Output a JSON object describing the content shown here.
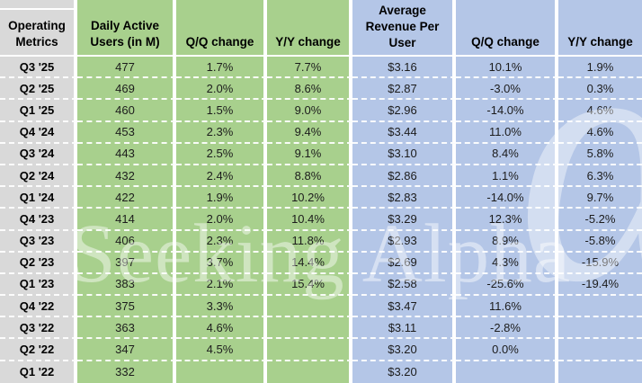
{
  "colors": {
    "green_fill": "#a8d08d",
    "blue_fill": "#b4c6e7",
    "gray_fill": "#d9d9d9",
    "grid_line": "#ffffff",
    "text": "#1c1c1c"
  },
  "watermark": {
    "text": "Seeking Alpha",
    "alpha_glyph": "α"
  },
  "table": {
    "headers": [
      "Operating Metrics",
      "Daily Active Users (in M)",
      "Q/Q change",
      "Y/Y change",
      "Average Revenue Per User",
      "Q/Q change",
      "Y/Y change"
    ],
    "rows": [
      [
        "Q3 '25",
        "477",
        "1.7%",
        "7.7%",
        "$3.16",
        "10.1%",
        "1.9%"
      ],
      [
        "Q2 '25",
        "469",
        "2.0%",
        "8.6%",
        "$2.87",
        "-3.0%",
        "0.3%"
      ],
      [
        "Q1 '25",
        "460",
        "1.5%",
        "9.0%",
        "$2.96",
        "-14.0%",
        "4.6%"
      ],
      [
        "Q4 '24",
        "453",
        "2.3%",
        "9.4%",
        "$3.44",
        "11.0%",
        "4.6%"
      ],
      [
        "Q3 '24",
        "443",
        "2.5%",
        "9.1%",
        "$3.10",
        "8.4%",
        "5.8%"
      ],
      [
        "Q2 '24",
        "432",
        "2.4%",
        "8.8%",
        "$2.86",
        "1.1%",
        "6.3%"
      ],
      [
        "Q1 '24",
        "422",
        "1.9%",
        "10.2%",
        "$2.83",
        "-14.0%",
        "9.7%"
      ],
      [
        "Q4 '23",
        "414",
        "2.0%",
        "10.4%",
        "$3.29",
        "12.3%",
        "-5.2%"
      ],
      [
        "Q3 '23",
        "406",
        "2.3%",
        "11.8%",
        "$2.93",
        "8.9%",
        "-5.8%"
      ],
      [
        "Q2 '23",
        "397",
        "3.7%",
        "14.4%",
        "$2.69",
        "4.3%",
        "-15.9%"
      ],
      [
        "Q1 '23",
        "383",
        "2.1%",
        "15.4%",
        "$2.58",
        "-25.6%",
        "-19.4%"
      ],
      [
        "Q4 '22",
        "375",
        "3.3%",
        "",
        "$3.47",
        "11.6%",
        ""
      ],
      [
        "Q3 '22",
        "363",
        "4.6%",
        "",
        "$3.11",
        "-2.8%",
        ""
      ],
      [
        "Q2 '22",
        "347",
        "4.5%",
        "",
        "$3.20",
        "0.0%",
        ""
      ],
      [
        "Q1 '22",
        "332",
        "",
        "",
        "$3.20",
        "",
        ""
      ]
    ]
  },
  "chart_data": {
    "type": "table",
    "title": "Operating Metrics",
    "categories": [
      "Q3 '25",
      "Q2 '25",
      "Q1 '25",
      "Q4 '24",
      "Q3 '24",
      "Q2 '24",
      "Q1 '24",
      "Q4 '23",
      "Q3 '23",
      "Q2 '23",
      "Q1 '23",
      "Q4 '22",
      "Q3 '22",
      "Q2 '22",
      "Q1 '22"
    ],
    "series": [
      {
        "name": "Daily Active Users (in M)",
        "values": [
          477,
          469,
          460,
          453,
          443,
          432,
          422,
          414,
          406,
          397,
          383,
          375,
          363,
          347,
          332
        ]
      },
      {
        "name": "DAU Q/Q change %",
        "values": [
          1.7,
          2.0,
          1.5,
          2.3,
          2.5,
          2.4,
          1.9,
          2.0,
          2.3,
          3.7,
          2.1,
          3.3,
          4.6,
          4.5,
          null
        ]
      },
      {
        "name": "DAU Y/Y change %",
        "values": [
          7.7,
          8.6,
          9.0,
          9.4,
          9.1,
          8.8,
          10.2,
          10.4,
          11.8,
          14.4,
          15.4,
          null,
          null,
          null,
          null
        ]
      },
      {
        "name": "Average Revenue Per User ($)",
        "values": [
          3.16,
          2.87,
          2.96,
          3.44,
          3.1,
          2.86,
          2.83,
          3.29,
          2.93,
          2.69,
          2.58,
          3.47,
          3.11,
          3.2,
          3.2
        ]
      },
      {
        "name": "ARPU Q/Q change %",
        "values": [
          10.1,
          -3.0,
          -14.0,
          11.0,
          8.4,
          1.1,
          -14.0,
          12.3,
          8.9,
          4.3,
          -25.6,
          11.6,
          -2.8,
          0.0,
          null
        ]
      },
      {
        "name": "ARPU Y/Y change %",
        "values": [
          1.9,
          0.3,
          4.6,
          4.6,
          5.8,
          6.3,
          9.7,
          -5.2,
          -5.8,
          -15.9,
          -19.4,
          null,
          null,
          null,
          null
        ]
      }
    ],
    "layout": {
      "grid": "white gridlines",
      "label_column_fill": "#d9d9d9",
      "dau_columns_fill": "#a8d08d",
      "arpu_columns_fill": "#b4c6e7"
    }
  }
}
